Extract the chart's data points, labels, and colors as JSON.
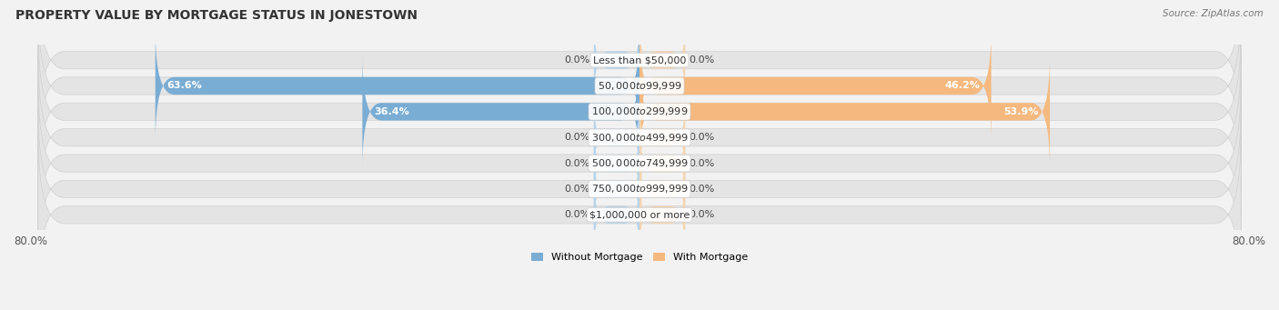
{
  "title": "PROPERTY VALUE BY MORTGAGE STATUS IN JONESTOWN",
  "source": "Source: ZipAtlas.com",
  "categories": [
    "Less than $50,000",
    "$50,000 to $99,999",
    "$100,000 to $299,999",
    "$300,000 to $499,999",
    "$500,000 to $749,999",
    "$750,000 to $999,999",
    "$1,000,000 or more"
  ],
  "without_mortgage": [
    0.0,
    63.6,
    36.4,
    0.0,
    0.0,
    0.0,
    0.0
  ],
  "with_mortgage": [
    0.0,
    46.2,
    53.9,
    0.0,
    0.0,
    0.0,
    0.0
  ],
  "color_without": "#7aadd4",
  "color_with": "#f5b97f",
  "color_without_stub": "#b8d4ea",
  "color_with_stub": "#f5d4b0",
  "xlim": 80.0,
  "stub_size": 6.0,
  "background_color": "#f2f2f2",
  "bar_bg_color": "#e4e4e4",
  "bar_bg_border": "#d0d0d0",
  "title_fontsize": 10,
  "label_fontsize": 8,
  "value_fontsize": 8,
  "tick_fontsize": 8.5,
  "legend_labels": [
    "Without Mortgage",
    "With Mortgage"
  ]
}
